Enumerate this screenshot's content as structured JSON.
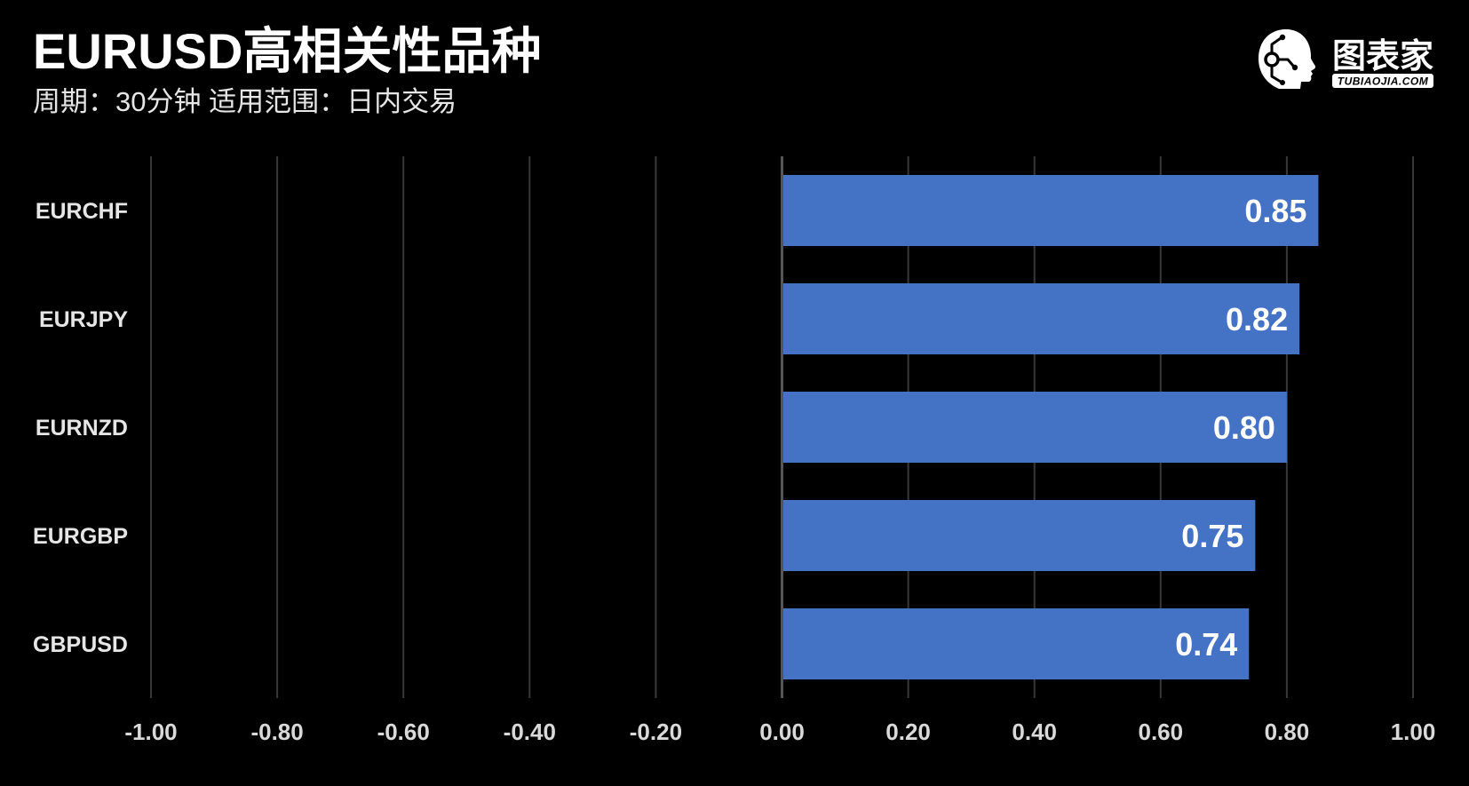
{
  "colors": {
    "background": "#000000",
    "bar": "#4472C4",
    "grid": "#383838",
    "zero_axis": "#555555",
    "text": "#FFFFFF"
  },
  "logo": {
    "icon": "head-circuit-icon",
    "brand": "图表家",
    "domain": "TUBIAOJIA.COM"
  },
  "chart_data": {
    "type": "bar",
    "orientation": "horizontal",
    "title": "EURUSD高相关性品种",
    "subtitle": "周期：30分钟 适用范围：日内交易",
    "categories": [
      "EURCHF",
      "EURJPY",
      "EURNZD",
      "EURGBP",
      "GBPUSD"
    ],
    "values": [
      0.85,
      0.82,
      0.8,
      0.75,
      0.74
    ],
    "value_labels": [
      "0.85",
      "0.82",
      "0.80",
      "0.75",
      "0.74"
    ],
    "xlim": [
      -1.0,
      1.0
    ],
    "x_ticks": [
      -1.0,
      -0.8,
      -0.6,
      -0.4,
      -0.2,
      0.0,
      0.2,
      0.4,
      0.6,
      0.8,
      1.0
    ],
    "x_tick_labels": [
      "-1.00",
      "-0.80",
      "-0.60",
      "-0.40",
      "-0.20",
      "0.00",
      "0.20",
      "0.40",
      "0.60",
      "0.80",
      "1.00"
    ],
    "grid": true
  }
}
